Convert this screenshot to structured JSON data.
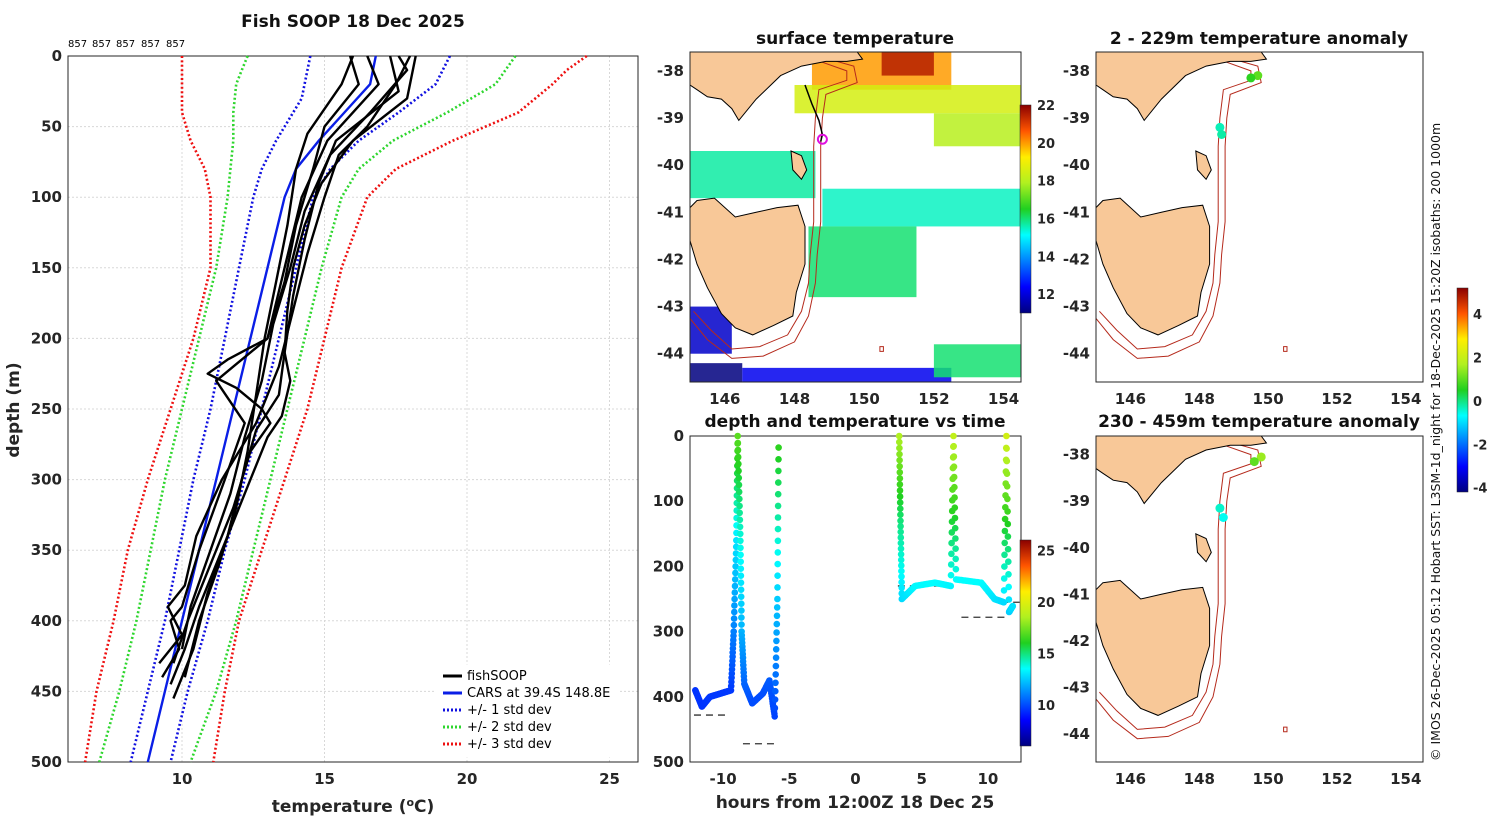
{
  "figure": {
    "footer": "© IMOS 26-Dec-2025 05:12 Hobart SST: L3SM-1d_night for 18-Dec-2025 15:20Z isobaths: 200  1000m"
  },
  "colors": {
    "fishsoop": "#000000",
    "cars": "#0a1ee6",
    "std1": "#1010e0",
    "std2": "#2ed62e",
    "std3": "#ee1010",
    "land": "#f8c898",
    "isobath": "#b52a1c",
    "ship_marker": "#e010e0"
  },
  "chart_data": [
    {
      "id": "profile",
      "type": "line",
      "title": "Fish SOOP 18 Dec 2025",
      "xlabel": "temperature (oC)",
      "ylabel": "depth (m)",
      "xlim": [
        6,
        26
      ],
      "ylim": [
        0,
        500
      ],
      "xticks": [
        10,
        15,
        20,
        25
      ],
      "yticks": [
        0,
        50,
        100,
        150,
        200,
        250,
        300,
        350,
        400,
        450,
        500
      ],
      "grid": true,
      "top_labels": [
        "857",
        "857",
        "857",
        "857",
        "857"
      ],
      "legend": {
        "position": "bottom-right",
        "entries": [
          "fishSOOP",
          "CARS at 39.4S 148.8E",
          "+/- 1 std dev",
          "+/- 2 std dev",
          "+/- 3 std dev"
        ]
      },
      "cars": {
        "depth": [
          0,
          20,
          40,
          60,
          80,
          100,
          150,
          200,
          250,
          300,
          350,
          400,
          450,
          500
        ],
        "temp": [
          16.8,
          16.6,
          15.7,
          14.8,
          14.0,
          13.6,
          13.0,
          12.4,
          11.8,
          11.2,
          10.6,
          10.0,
          9.4,
          8.8
        ]
      },
      "std1": {
        "left": {
          "depth": [
            0,
            30,
            60,
            80,
            100,
            150,
            200,
            250,
            300,
            350,
            400,
            450,
            500
          ],
          "temp": [
            14.5,
            14.2,
            13.3,
            12.8,
            12.5,
            12.0,
            11.5,
            11.0,
            10.4,
            9.9,
            9.4,
            8.8,
            8.2
          ]
        },
        "right": {
          "depth": [
            0,
            20,
            40,
            60,
            80,
            100,
            150,
            200,
            250,
            300,
            350,
            400,
            450,
            500
          ],
          "temp": [
            19.4,
            18.9,
            17.6,
            16.2,
            15.2,
            14.6,
            14.0,
            13.4,
            12.8,
            12.2,
            11.5,
            10.9,
            10.2,
            9.6
          ]
        }
      },
      "std2": {
        "left": {
          "depth": [
            0,
            10,
            20,
            40,
            60,
            80,
            100,
            150,
            200,
            250,
            300,
            350,
            400,
            450,
            500
          ],
          "temp": [
            12.3,
            12.1,
            11.9,
            11.8,
            11.8,
            11.7,
            11.6,
            11.2,
            10.6,
            10.0,
            9.4,
            8.9,
            8.4,
            7.8,
            7.1
          ]
        },
        "right": {
          "depth": [
            0,
            20,
            40,
            60,
            80,
            100,
            150,
            200,
            250,
            300,
            350,
            400,
            450,
            500
          ],
          "temp": [
            21.7,
            21.0,
            19.3,
            17.4,
            16.2,
            15.6,
            14.9,
            14.3,
            13.7,
            13.1,
            12.5,
            11.9,
            11.2,
            10.3
          ]
        }
      },
      "std3": {
        "left": {
          "depth": [
            0,
            10,
            20,
            40,
            60,
            80,
            100,
            150,
            200,
            250,
            300,
            350,
            400,
            450,
            500
          ],
          "temp": [
            10.0,
            10.0,
            10.0,
            10.0,
            10.3,
            10.8,
            11.0,
            11.0,
            10.4,
            9.6,
            8.8,
            8.1,
            7.6,
            7.0,
            6.6
          ]
        },
        "right": {
          "depth": [
            0,
            10,
            20,
            40,
            60,
            80,
            100,
            150,
            200,
            250,
            300,
            350,
            400,
            450,
            500
          ],
          "temp": [
            24.2,
            23.5,
            23.0,
            21.8,
            19.5,
            17.5,
            16.5,
            15.6,
            15.0,
            14.4,
            13.6,
            12.8,
            12.0,
            11.5,
            11.1
          ]
        }
      },
      "fishsoop_casts": [
        {
          "depth": [
            0,
            20,
            55,
            80,
            120,
            160,
            200,
            240,
            280,
            320,
            360,
            400,
            440
          ],
          "temp": [
            16.0,
            15.6,
            14.4,
            14.0,
            13.7,
            13.3,
            12.9,
            12.6,
            12.3,
            11.9,
            11.3,
            10.6,
            10.1
          ]
        },
        {
          "depth": [
            0,
            20,
            50,
            80,
            120,
            160,
            200,
            215,
            225,
            235,
            250,
            260,
            280,
            320,
            360,
            400,
            430
          ],
          "temp": [
            15.9,
            16.2,
            15.0,
            14.6,
            14.0,
            13.6,
            13.0,
            11.6,
            10.9,
            11.9,
            12.8,
            13.1,
            12.4,
            11.8,
            11.0,
            10.2,
            9.7
          ]
        },
        {
          "depth": [
            0,
            25,
            60,
            90,
            130,
            170,
            210,
            240,
            265,
            300,
            340,
            380,
            420,
            455
          ],
          "temp": [
            17.3,
            17.6,
            15.4,
            14.8,
            14.3,
            13.9,
            13.6,
            13.4,
            12.6,
            12.1,
            11.6,
            10.9,
            10.4,
            9.7
          ]
        },
        {
          "depth": [
            0,
            20,
            50,
            70,
            100,
            140,
            180,
            220,
            260,
            300,
            340,
            375,
            390,
            410,
            430
          ],
          "temp": [
            18.0,
            17.5,
            16.5,
            15.5,
            15.0,
            14.4,
            13.9,
            13.4,
            12.6,
            11.4,
            10.5,
            10.1,
            9.5,
            10.0,
            9.2
          ]
        },
        {
          "depth": [
            0,
            30,
            60,
            90,
            120,
            150,
            180,
            210,
            230,
            255,
            270,
            300,
            330,
            360,
            390,
            420,
            445
          ],
          "temp": [
            18.2,
            17.9,
            16.0,
            14.9,
            14.3,
            13.9,
            13.7,
            13.6,
            13.8,
            13.5,
            13.0,
            12.4,
            11.8,
            11.2,
            10.6,
            10.1,
            9.6
          ]
        },
        {
          "depth": [
            0,
            20,
            60,
            100,
            150,
            200,
            220,
            230,
            260,
            300,
            350,
            390,
            400,
            420,
            440
          ],
          "temp": [
            16.5,
            16.9,
            15.1,
            14.2,
            13.6,
            13.0,
            11.8,
            11.2,
            12.2,
            11.5,
            10.6,
            10.0,
            9.6,
            9.9,
            9.3
          ]
        },
        {
          "depth": [
            0,
            10,
            40,
            70,
            110,
            150,
            190,
            230,
            270,
            310,
            350,
            390,
            420
          ],
          "temp": [
            17.6,
            17.9,
            16.6,
            15.2,
            14.3,
            13.8,
            13.2,
            12.8,
            12.2,
            11.7,
            11.0,
            10.3,
            10.0
          ]
        }
      ]
    },
    {
      "id": "sst_map",
      "type": "heatmap",
      "title": "surface temperature",
      "xlim": [
        145,
        154.5
      ],
      "ylim": [
        -44.6,
        -37.6
      ],
      "xticks": [
        146,
        148,
        150,
        152,
        154
      ],
      "yticks": [
        -38,
        -39,
        -40,
        -41,
        -42,
        -43,
        -44
      ],
      "colorbar": {
        "min": 11,
        "max": 22,
        "ticks": [
          12,
          14,
          16,
          18,
          20,
          22
        ]
      },
      "ship_track": {
        "lon": [
          148.3,
          148.5,
          148.7,
          148.8,
          148.75
        ],
        "lat": [
          -38.3,
          -38.7,
          -39.05,
          -39.35,
          -39.5
        ]
      },
      "ship_marker": {
        "lon": 148.8,
        "lat": -39.45
      },
      "fields": [
        {
          "x0": 148.5,
          "x1": 152.5,
          "y0": -37.6,
          "y1": -38.4,
          "value": 20.0
        },
        {
          "x0": 150.5,
          "x1": 152.0,
          "y0": -37.6,
          "y1": -38.1,
          "value": 21.5
        },
        {
          "x0": 148.0,
          "x1": 154.5,
          "y0": -38.3,
          "y1": -38.9,
          "value": 18.5
        },
        {
          "x0": 152.0,
          "x1": 154.5,
          "y0": -38.9,
          "y1": -39.6,
          "value": 18.0
        },
        {
          "x0": 145.0,
          "x1": 148.6,
          "y0": -39.7,
          "y1": -40.7,
          "value": 15.7
        },
        {
          "x0": 148.8,
          "x1": 154.5,
          "y0": -40.5,
          "y1": -41.3,
          "value": 15.5
        },
        {
          "x0": 148.4,
          "x1": 151.5,
          "y0": -41.3,
          "y1": -42.8,
          "value": 16.0
        },
        {
          "x0": 145.0,
          "x1": 146.2,
          "y0": -43.0,
          "y1": -44.0,
          "value": 11.8
        },
        {
          "x0": 145.0,
          "x1": 146.5,
          "y0": -44.2,
          "y1": -44.6,
          "value": 11.0
        },
        {
          "x0": 146.5,
          "x1": 152.5,
          "y0": -44.3,
          "y1": -44.6,
          "value": 12.2
        },
        {
          "x0": 152.0,
          "x1": 154.5,
          "y0": -43.8,
          "y1": -44.5,
          "value": 16.0
        }
      ]
    },
    {
      "id": "time_series",
      "type": "scatter",
      "title": "depth and temperature vs time",
      "xlabel": "hours from 12:00Z 18 Dec 25",
      "xlim": [
        -12.5,
        12.5
      ],
      "ylim": [
        0,
        500
      ],
      "xticks": [
        -10,
        -5,
        0,
        5,
        10
      ],
      "yticks": [
        0,
        100,
        200,
        300,
        400,
        500
      ],
      "colorbar": {
        "min": 6,
        "max": 26,
        "ticks": [
          10,
          15,
          20,
          25
        ]
      },
      "segments": [
        {
          "points": [
            [
              -12.1,
              390,
              9.5
            ],
            [
              -11.6,
              415,
              9.5
            ],
            [
              -11.0,
              400,
              9.6
            ],
            [
              -10.2,
              395,
              9.6
            ],
            [
              -9.4,
              390,
              9.6
            ],
            [
              -9.2,
              300,
              11
            ],
            [
              -9.0,
              160,
              13
            ],
            [
              -8.9,
              0,
              17
            ],
            [
              -8.7,
              150,
              14
            ],
            [
              -8.6,
              300,
              12
            ],
            [
              -8.4,
              380,
              10.5
            ],
            [
              -7.8,
              410,
              10
            ],
            [
              -7.0,
              395,
              10
            ],
            [
              -6.5,
              375,
              10.3
            ],
            [
              -6.1,
              430,
              9.8
            ],
            [
              -5.9,
              250,
              12.5
            ],
            [
              -5.8,
              0,
              16.5
            ]
          ]
        },
        {
          "points": [
            [
              3.3,
              0,
              18.5
            ],
            [
              3.4,
              130,
              15
            ],
            [
              3.5,
              250,
              12.8
            ],
            [
              4.5,
              230,
              13.4
            ],
            [
              6.0,
              225,
              13.5
            ],
            [
              7.2,
              230,
              13.3
            ],
            [
              7.4,
              0,
              19
            ],
            [
              7.6,
              220,
              13.5
            ],
            [
              9.5,
              225,
              13.5
            ],
            [
              10.5,
              250,
              13
            ],
            [
              11.2,
              255,
              12.8
            ],
            [
              11.4,
              0,
              19.5
            ],
            [
              11.6,
              270,
              12.5
            ],
            [
              11.9,
              260,
              13
            ]
          ]
        }
      ],
      "dashes": [
        {
          "x0": -12.2,
          "x1": -9.5,
          "depth": 428
        },
        {
          "x0": -8.5,
          "x1": -5.8,
          "depth": 472
        },
        {
          "x0": 3.2,
          "x1": 7.5,
          "depth": 230
        },
        {
          "x0": 11.0,
          "x1": 12.4,
          "depth": 255
        },
        {
          "x0": 8.0,
          "x1": 11.5,
          "depth": 278
        }
      ]
    },
    {
      "id": "anomaly_upper",
      "type": "scatter",
      "title": "2 - 229m temperature anomaly",
      "xlim": [
        145,
        154.5
      ],
      "ylim": [
        -44.6,
        -37.6
      ],
      "xticks": [
        146,
        148,
        150,
        152,
        154
      ],
      "yticks": [
        -38,
        -39,
        -40,
        -41,
        -42,
        -43,
        -44
      ],
      "points": [
        {
          "lon": 149.7,
          "lat": -38.1,
          "value": 1.0
        },
        {
          "lon": 149.5,
          "lat": -38.15,
          "value": 0.6
        },
        {
          "lon": 148.6,
          "lat": -39.2,
          "value": -0.3
        },
        {
          "lon": 148.65,
          "lat": -39.35,
          "value": -0.2
        }
      ]
    },
    {
      "id": "anomaly_lower",
      "type": "scatter",
      "title": "230 - 459m temperature anomaly",
      "xlim": [
        145,
        154.5
      ],
      "ylim": [
        -44.6,
        -37.6
      ],
      "xticks": [
        146,
        148,
        150,
        152,
        154
      ],
      "yticks": [
        -38,
        -39,
        -40,
        -41,
        -42,
        -43,
        -44
      ],
      "points": [
        {
          "lon": 149.8,
          "lat": -38.05,
          "value": 1.5
        },
        {
          "lon": 149.6,
          "lat": -38.15,
          "value": 1.0
        },
        {
          "lon": 148.6,
          "lat": -39.15,
          "value": -0.4
        },
        {
          "lon": 148.7,
          "lat": -39.35,
          "value": -0.6
        }
      ]
    },
    {
      "id": "anomaly_colorbar",
      "type": "heatmap",
      "colorbar": {
        "min": -4.2,
        "max": 5.2,
        "ticks": [
          4,
          2,
          0,
          -2,
          -4
        ]
      }
    }
  ]
}
